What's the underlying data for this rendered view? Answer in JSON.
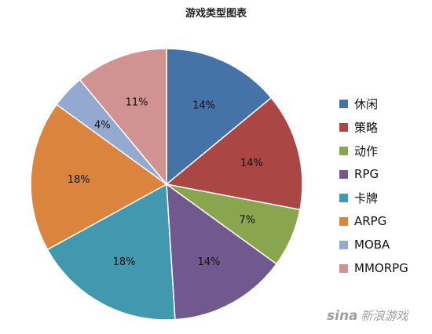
{
  "chart_data": {
    "type": "pie",
    "title": "游戏类型图表",
    "legend_position": "right",
    "slices": [
      {
        "name": "休闲",
        "value": 14,
        "label": "14%",
        "color": "#4572a7"
      },
      {
        "name": "策略",
        "value": 14,
        "label": "14%",
        "color": "#aa4643"
      },
      {
        "name": "动作",
        "value": 7,
        "label": "7%",
        "color": "#89a54e"
      },
      {
        "name": "RPG",
        "value": 14,
        "label": "14%",
        "color": "#71588f"
      },
      {
        "name": "卡牌",
        "value": 18,
        "label": "18%",
        "color": "#4198af"
      },
      {
        "name": "ARPG",
        "value": 18,
        "label": "18%",
        "color": "#db843d"
      },
      {
        "name": "MOBA",
        "value": 4,
        "label": "4%",
        "color": "#93a9cf"
      },
      {
        "name": "MMORPG",
        "value": 11,
        "label": "11%",
        "color": "#d19392"
      }
    ]
  },
  "watermark": {
    "logo": "sina",
    "text": "新浪游戏"
  }
}
